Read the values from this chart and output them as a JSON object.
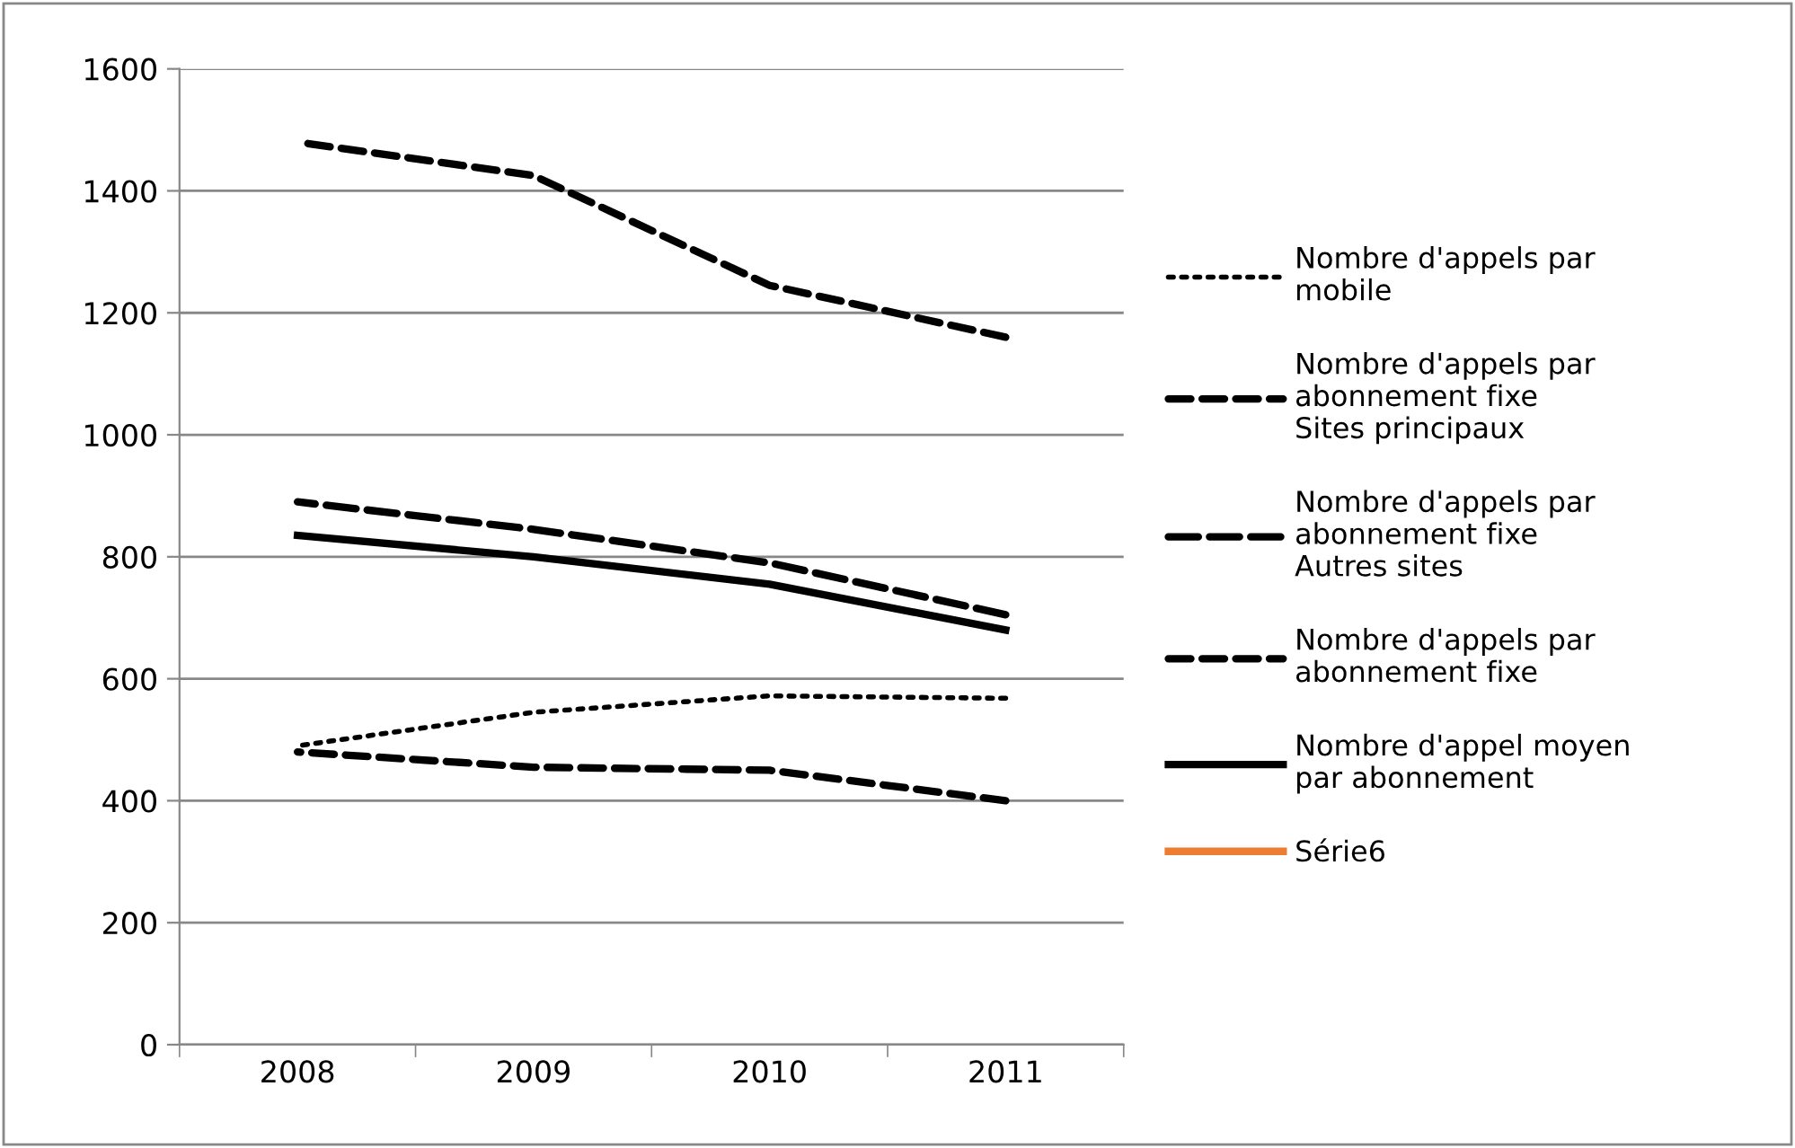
{
  "chart_data": {
    "type": "line",
    "categories": [
      "2008",
      "2009",
      "2010",
      "2011"
    ],
    "series": [
      {
        "name": "Nombre d'appels par\nmobile",
        "color": "#000000",
        "line_style": "dotted",
        "values": [
          490,
          545,
          572,
          568
        ]
      },
      {
        "name": "Nombre d'appels par\nabonnement fixe\nSites principaux",
        "color": "#000000",
        "line_style": "dashed",
        "values": [
          1480,
          1425,
          1245,
          1160
        ]
      },
      {
        "name": "Nombre d'appels par\nabonnement fixe\nAutres sites",
        "color": "#000000",
        "line_style": "dashed",
        "values": [
          890,
          845,
          790,
          705
        ]
      },
      {
        "name": "Nombre d'appels par\nabonnement fixe",
        "color": "#000000",
        "line_style": "dashed",
        "values": [
          480,
          455,
          450,
          400
        ]
      },
      {
        "name": "Nombre d'appel moyen\npar abonnement",
        "color": "#000000",
        "line_style": "solid",
        "values": [
          835,
          800,
          755,
          680
        ]
      },
      {
        "name": "Série6",
        "color": "#ed7d31",
        "line_style": "solid",
        "values": [
          null,
          null,
          null,
          null
        ]
      }
    ],
    "ylim": [
      0,
      1600
    ],
    "yticks": [
      0,
      200,
      400,
      600,
      800,
      1000,
      1200,
      1400,
      1600
    ],
    "grid": "y",
    "legend": "right",
    "marker": "none"
  }
}
